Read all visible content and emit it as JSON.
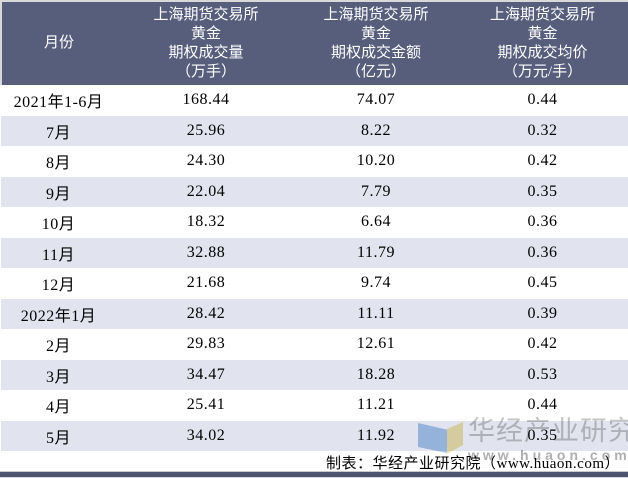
{
  "table": {
    "columns": [
      {
        "key": "month",
        "label": "月份"
      },
      {
        "key": "volume",
        "label": "上海期货交易所\n黄金\n期权成交量\n（万手）"
      },
      {
        "key": "amount",
        "label": "上海期货交易所\n黄金\n期权成交金额\n（亿元）"
      },
      {
        "key": "avg_price",
        "label": "上海期货交易所\n黄金\n期权成交均价\n（万元/手）"
      }
    ],
    "rows": [
      {
        "month": "2021年1-6月",
        "volume": "168.44",
        "amount": "74.07",
        "avg_price": "0.44"
      },
      {
        "month": "7月",
        "volume": "25.96",
        "amount": "8.22",
        "avg_price": "0.32"
      },
      {
        "month": "8月",
        "volume": "24.30",
        "amount": "10.20",
        "avg_price": "0.42"
      },
      {
        "month": "9月",
        "volume": "22.04",
        "amount": "7.79",
        "avg_price": "0.35"
      },
      {
        "month": "10月",
        "volume": "18.32",
        "amount": "6.64",
        "avg_price": "0.36"
      },
      {
        "month": "11月",
        "volume": "32.88",
        "amount": "11.79",
        "avg_price": "0.36"
      },
      {
        "month": "12月",
        "volume": "21.68",
        "amount": "9.74",
        "avg_price": "0.45"
      },
      {
        "month": "2022年1月",
        "volume": "28.42",
        "amount": "11.11",
        "avg_price": "0.39"
      },
      {
        "month": "2月",
        "volume": "29.83",
        "amount": "12.61",
        "avg_price": "0.42"
      },
      {
        "month": "3月",
        "volume": "34.47",
        "amount": "18.28",
        "avg_price": "0.53"
      },
      {
        "month": "4月",
        "volume": "25.41",
        "amount": "11.21",
        "avg_price": "0.44"
      },
      {
        "month": "5月",
        "volume": "34.02",
        "amount": "11.92",
        "avg_price": "0.35"
      }
    ]
  },
  "footer": {
    "credit": "制表：华经产业研究院（www.huaon.com）"
  },
  "watermark": {
    "name": "华经产业研究院",
    "url": "www.huaon.com"
  },
  "colors": {
    "header_bg": "#565E7C",
    "header_text": "#FFFFFF",
    "alt_row_bg": "#E1E4EE",
    "bottom_bar": "#4C5472",
    "watermark_text": "#C5C5C5",
    "watermark_logo_blue": "#A9C7EA",
    "watermark_logo_yellow": "#F1E5A9"
  },
  "chart_data": {
    "type": "table",
    "title": "上海期货交易所黄金期权月度成交情况",
    "categories": [
      "2021年1-6月",
      "7月",
      "8月",
      "9月",
      "10月",
      "11月",
      "12月",
      "2022年1月",
      "2月",
      "3月",
      "4月",
      "5月"
    ],
    "series": [
      {
        "name": "上海期货交易所黄金期权成交量（万手）",
        "values": [
          168.44,
          25.96,
          24.3,
          22.04,
          18.32,
          32.88,
          21.68,
          28.42,
          29.83,
          34.47,
          25.41,
          34.02
        ]
      },
      {
        "name": "上海期货交易所黄金期权成交金额（亿元）",
        "values": [
          74.07,
          8.22,
          10.2,
          7.79,
          6.64,
          11.79,
          9.74,
          11.11,
          12.61,
          18.28,
          11.21,
          11.92
        ]
      },
      {
        "name": "上海期货交易所黄金期权成交均价（万元/手）",
        "values": [
          0.44,
          0.32,
          0.42,
          0.35,
          0.36,
          0.36,
          0.45,
          0.39,
          0.42,
          0.53,
          0.44,
          0.35
        ]
      }
    ],
    "source_note": "制表：华经产业研究院（www.huaon.com）"
  }
}
